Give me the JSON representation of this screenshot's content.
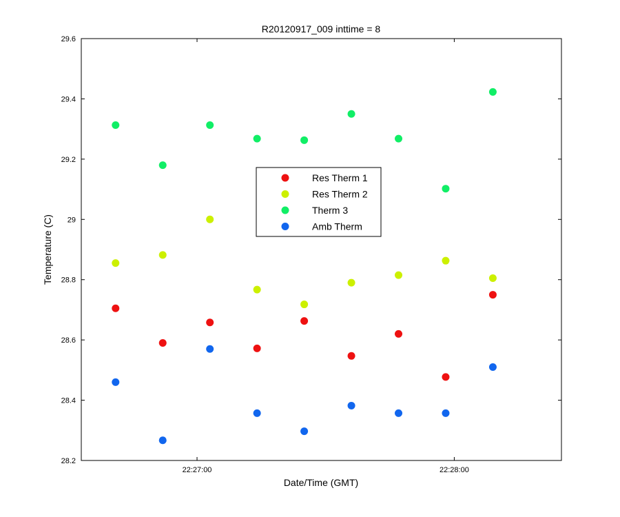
{
  "chart_data": {
    "type": "scatter",
    "title": "R20120917_009 inttime = 8",
    "xlabel": "Date/Time (GMT)",
    "ylabel": "Temperature (C)",
    "x_axis": {
      "kind": "time",
      "min": "22:26:33",
      "max": "22:28:25",
      "ticks": [
        "22:27:00",
        "22:28:00"
      ]
    },
    "y_axis": {
      "min": 28.2,
      "max": 29.6,
      "ticks": [
        "28.2",
        "28.4",
        "28.6",
        "28.8",
        "29",
        "29.2",
        "29.4",
        "29.6"
      ]
    },
    "grid": false,
    "legend_position": "center",
    "x": [
      "22:26:41",
      "22:26:52",
      "22:27:03",
      "22:27:14",
      "22:27:25",
      "22:27:36",
      "22:27:47",
      "22:27:58",
      "22:28:09"
    ],
    "series": [
      {
        "name": "Res Therm 1",
        "color": "#ee1111",
        "values": [
          28.705,
          28.59,
          28.658,
          28.572,
          28.663,
          28.547,
          28.62,
          28.477,
          28.75
        ]
      },
      {
        "name": "Res Therm 2",
        "color": "#ccf000",
        "values": [
          28.855,
          28.882,
          29.0,
          28.767,
          28.718,
          28.79,
          28.815,
          28.863,
          28.805
        ]
      },
      {
        "name": "Therm 3",
        "color": "#11ee66",
        "values": [
          29.313,
          29.18,
          29.313,
          29.268,
          29.263,
          29.35,
          29.268,
          29.102,
          29.423
        ]
      },
      {
        "name": "Amb Therm",
        "color": "#1166ee",
        "values": [
          28.46,
          28.267,
          28.57,
          28.357,
          28.297,
          28.382,
          28.357,
          28.357,
          28.51
        ]
      }
    ]
  }
}
